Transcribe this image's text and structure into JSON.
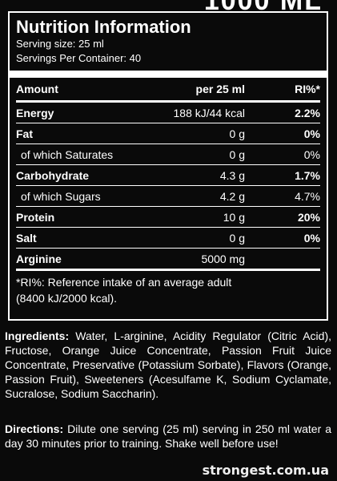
{
  "panel": {
    "title": "Nutrition Information",
    "serving_size": "Serving size: 25 ml",
    "servings_per_container": "Servings Per Container: 40"
  },
  "table": {
    "headers": [
      "Amount",
      "per 25 ml",
      "RI%*"
    ],
    "rows": [
      {
        "name": "Energy",
        "amount": "188 kJ/44 kcal",
        "ri": "2.2%"
      },
      {
        "name": "Fat",
        "amount": "0 g",
        "ri": "0%"
      },
      {
        "name": "of which Saturates",
        "amount": "0 g",
        "ri": "0%"
      },
      {
        "name": "Carbohydrate",
        "amount": "4.3 g",
        "ri": "1.7%"
      },
      {
        "name": "of which Sugars",
        "amount": "4.2 g",
        "ri": "4.7%"
      },
      {
        "name": "Protein",
        "amount": "10 g",
        "ri": "20%"
      },
      {
        "name": "Salt",
        "amount": "0 g",
        "ri": "0%"
      },
      {
        "name": "Arginine",
        "amount": "5000 mg",
        "ri": ""
      }
    ]
  },
  "footnote": {
    "line1": "*RI%: Reference intake of an average adult",
    "line2": "(8400 kJ/2000 kcal)."
  },
  "ingredients": {
    "label": "Ingredients:",
    "text": " Water, L-arginine, Acidity Regulator (Citric Acid), Fructose, Orange Juice Concentrate, Passion Fruit Juice Concentrate, Preservative (Potassium Sorbate), Flavors (Orange, Passion Fruit), Sweeteners (Acesulfame K, Sodium Cyclamate, Sucralose, Sodium Saccharin)."
  },
  "directions": {
    "label": "Directions:",
    "text": " Dilute one serving (25 ml) serving in 250 ml water a day 30 minutes prior to training. Shake well before use!"
  },
  "watermark": "strongest.com.ua"
}
